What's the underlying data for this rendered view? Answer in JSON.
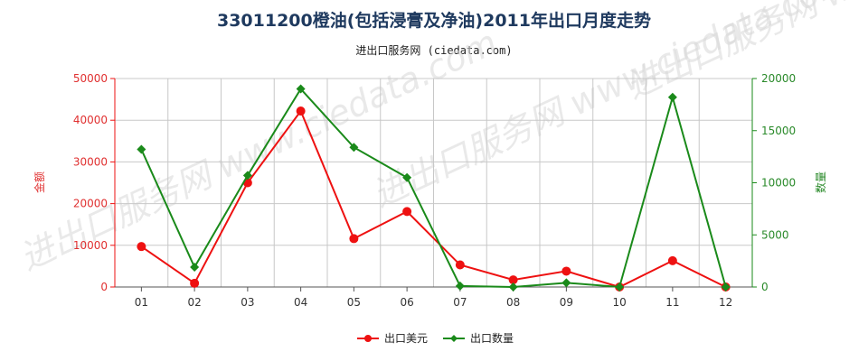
{
  "title": "33011200橙油(包括浸膏及净油)2011年出口月度走势",
  "subtitle": "进出口服务网 (ciedata.com)",
  "watermark": "进出口服务网 www.ciedata.com",
  "colors": {
    "amount": "#ee1111",
    "quantity": "#1a8a1a",
    "grid": "#c8c8c8"
  },
  "chart_data": {
    "type": "line",
    "categories": [
      "01",
      "02",
      "03",
      "04",
      "05",
      "06",
      "07",
      "08",
      "09",
      "10",
      "11",
      "12"
    ],
    "ylabel_left": "金额",
    "ylabel_right": "数量",
    "ylim_left": [
      0,
      50000
    ],
    "ylim_right": [
      0,
      20000
    ],
    "yticks_left": [
      "0",
      "10000",
      "20000",
      "30000",
      "40000",
      "50000"
    ],
    "yticks_right": [
      "0",
      "5000",
      "10000",
      "15000",
      "20000"
    ],
    "grid": true,
    "legend_position": "bottom",
    "series": [
      {
        "name": "出口美元",
        "axis": "left",
        "marker": "circle",
        "values": [
          9700,
          900,
          25000,
          42200,
          11600,
          18100,
          5300,
          1700,
          3800,
          0,
          6300,
          0
        ]
      },
      {
        "name": "出口数量",
        "axis": "right",
        "marker": "diamond",
        "values": [
          13200,
          1900,
          10700,
          19000,
          13400,
          10500,
          100,
          0,
          400,
          0,
          18200,
          0
        ]
      }
    ]
  }
}
